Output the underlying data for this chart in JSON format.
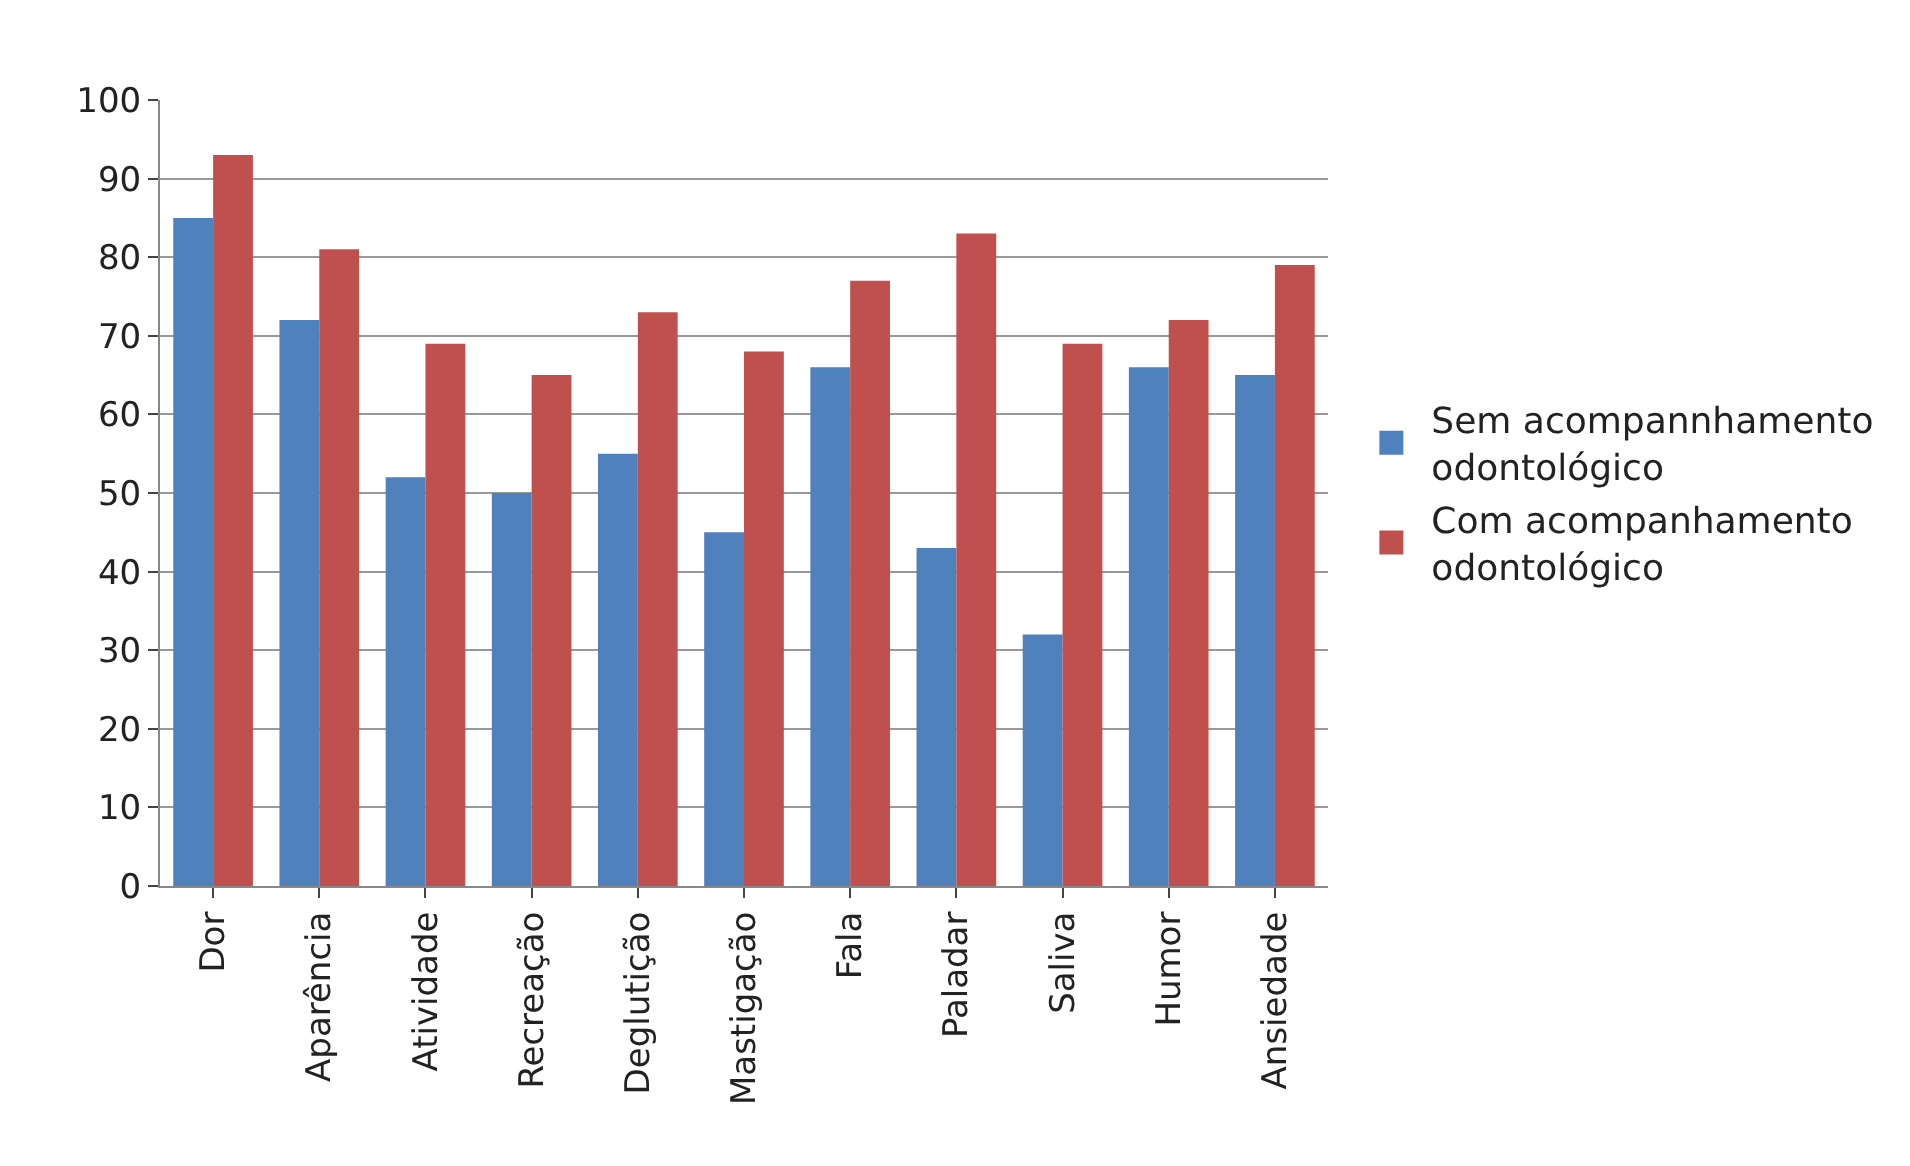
{
  "chart_data": {
    "type": "bar",
    "categories": [
      "Dor",
      "Aparência",
      "Atividade",
      "Recreação",
      "Deglutição",
      "Mastigação",
      "Fala",
      "Paladar",
      "Saliva",
      "Humor",
      "Ansiedade"
    ],
    "series": [
      {
        "name": "Sem acompannhamento odontológico",
        "color": "#4f81bd",
        "values": [
          85,
          72,
          52,
          50,
          55,
          45,
          66,
          43,
          32,
          66,
          65
        ]
      },
      {
        "name": "Com acompanhamento odontológico",
        "color": "#c0504d",
        "values": [
          93,
          81,
          69,
          65,
          73,
          68,
          77,
          83,
          69,
          72,
          79
        ]
      }
    ],
    "ylim": [
      0,
      100
    ],
    "yticks": [
      0,
      10,
      20,
      30,
      40,
      50,
      60,
      70,
      80,
      90,
      100
    ],
    "grid": "y",
    "legend": "right"
  }
}
